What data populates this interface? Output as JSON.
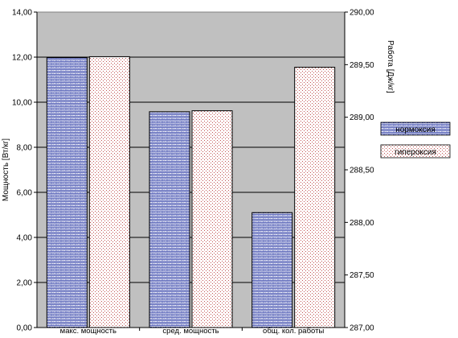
{
  "chart_data": {
    "type": "bar",
    "title": "",
    "categories": [
      "макс. мощность",
      "сред. мощность",
      "общ. кол. работы"
    ],
    "series": [
      {
        "name": "нормоксия",
        "values": [
          11.98,
          9.58,
          5.1
        ],
        "axis": "left",
        "pattern": "blue-diagonal"
      },
      {
        "name": "гипероксия",
        "values": [
          12.02,
          9.62,
          11.55
        ],
        "axis": "left",
        "pattern": "pink-dots"
      }
    ],
    "ylabel": "Мощность [Вт/кг]",
    "ylim": [
      0,
      14
    ],
    "yticks": [
      "0,00",
      "2,00",
      "4,00",
      "6,00",
      "8,00",
      "10,00",
      "12,00",
      "14,00"
    ],
    "y2label": "Работа [Дж/кг]",
    "y2lim": [
      287,
      290
    ],
    "y2ticks": [
      "287,00",
      "287,50",
      "288,00",
      "288,50",
      "289,00",
      "289,50",
      "290,00"
    ],
    "grid": true,
    "legend_position": "right",
    "colors": {
      "plot_bg": "#c0c0c0",
      "bar_border": "#000000",
      "series1_fg": "#1a2a9e",
      "series2_fg": "#c05050"
    }
  }
}
